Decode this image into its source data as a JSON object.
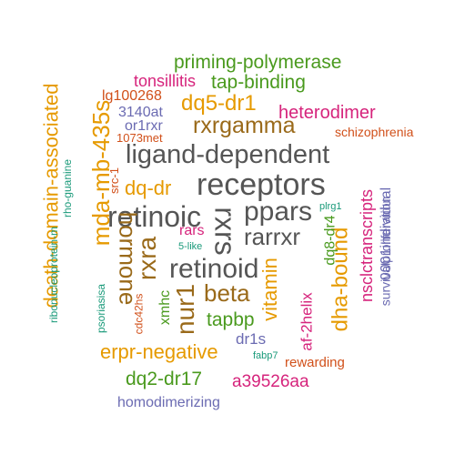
{
  "palette": {
    "gray": "#555555",
    "purple": "#6b6bb2",
    "green": "#4a9a1e",
    "orange": "#e69a00",
    "magenta": "#d6247c",
    "brown": "#9a6a1a",
    "rust": "#d1501a",
    "teal": "#1a9a7a"
  },
  "words": [
    {
      "text": "receptors",
      "color": "gray"
    },
    {
      "text": "ligand-dependent",
      "color": "gray"
    },
    {
      "text": "retinoic",
      "color": "gray"
    },
    {
      "text": "retinoid",
      "color": "gray"
    },
    {
      "text": "ppars",
      "color": "gray"
    },
    {
      "text": "rarrxr",
      "color": "gray"
    },
    {
      "text": "rxrs",
      "color": "gray"
    },
    {
      "text": "rxrgamma",
      "color": "brown"
    },
    {
      "text": "dq5-dr1",
      "color": "orange"
    },
    {
      "text": "priming-polymerase",
      "color": "green"
    },
    {
      "text": "tap-binding",
      "color": "green"
    },
    {
      "text": "tonsillitis",
      "color": "magenta"
    },
    {
      "text": "lg100268",
      "color": "rust"
    },
    {
      "text": "3140at",
      "color": "purple"
    },
    {
      "text": "or1rxr",
      "color": "purple"
    },
    {
      "text": "1073met",
      "color": "rust"
    },
    {
      "text": "heterodimer",
      "color": "magenta"
    },
    {
      "text": "schizophrenia",
      "color": "rust"
    },
    {
      "text": "death-domain-associated",
      "color": "orange"
    },
    {
      "text": "mda-mb-435s",
      "color": "orange"
    },
    {
      "text": "dq-dr",
      "color": "orange"
    },
    {
      "text": "src-1",
      "color": "rust"
    },
    {
      "text": "rho-guanine",
      "color": "teal"
    },
    {
      "text": "ribonucleoprotein-m",
      "color": "teal"
    },
    {
      "text": "hormone",
      "color": "brown"
    },
    {
      "text": "rxra",
      "color": "brown"
    },
    {
      "text": "rars",
      "color": "magenta"
    },
    {
      "text": "5-like",
      "color": "teal"
    },
    {
      "text": "plrg1",
      "color": "teal"
    },
    {
      "text": "beta",
      "color": "brown"
    },
    {
      "text": "nur1",
      "color": "brown"
    },
    {
      "text": "vitamin",
      "color": "orange"
    },
    {
      "text": "dha-bound",
      "color": "orange"
    },
    {
      "text": "dq8-dr4",
      "color": "green"
    },
    {
      "text": "af-2helix",
      "color": "magenta"
    },
    {
      "text": "nsclctranscripts",
      "color": "magenta"
    },
    {
      "text": "0001individual",
      "color": "purple"
    },
    {
      "text": "survivalproliferation",
      "color": "purple"
    },
    {
      "text": "cdc42hs",
      "color": "rust"
    },
    {
      "text": "psoriasisa",
      "color": "teal"
    },
    {
      "text": "xmhc",
      "color": "green"
    },
    {
      "text": "tapbp",
      "color": "green"
    },
    {
      "text": "dr1s",
      "color": "purple"
    },
    {
      "text": "fabp7",
      "color": "teal"
    },
    {
      "text": "rewarding",
      "color": "rust"
    },
    {
      "text": "erpr-negative",
      "color": "orange"
    },
    {
      "text": "dq2-dr17",
      "color": "green"
    },
    {
      "text": "a39526aa",
      "color": "magenta"
    },
    {
      "text": "homodimerizing",
      "color": "purple"
    }
  ]
}
